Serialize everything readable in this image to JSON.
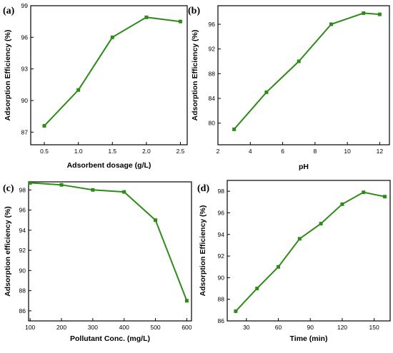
{
  "chart_data": [
    {
      "type": "line",
      "panel_label": "(a)",
      "xlabel": "Adsorbent dosage (g/L)",
      "ylabel": "Adsorption Efficiency (%)",
      "x": [
        0.5,
        1.0,
        1.5,
        2.0,
        2.5
      ],
      "y": [
        87.6,
        91.0,
        96.0,
        97.9,
        97.5
      ],
      "xlim": [
        0.3,
        2.6
      ],
      "ylim": [
        85.8,
        99.0
      ],
      "xticks": [
        0.5,
        1.0,
        1.5,
        2.0,
        2.5
      ],
      "xtick_labels": [
        "0.5",
        "1.0",
        "1.5",
        "2.0",
        "2.5"
      ],
      "yticks": [
        87,
        90,
        93,
        96,
        99
      ],
      "ytick_labels": [
        "87",
        "90",
        "93",
        "96",
        "99"
      ],
      "color": "#2e8b18",
      "grid": false
    },
    {
      "type": "line",
      "panel_label": "(b)",
      "xlabel": "pH",
      "ylabel": "Adsorption Efficiency (%)",
      "x": [
        3,
        5,
        7,
        9,
        11,
        12
      ],
      "y": [
        79.0,
        85.0,
        90.0,
        96.0,
        97.8,
        97.6
      ],
      "xlim": [
        2,
        12.6
      ],
      "ylim": [
        76.5,
        99.0
      ],
      "xticks": [
        2,
        4,
        6,
        8,
        10,
        12
      ],
      "xtick_labels": [
        "2",
        "4",
        "6",
        "8",
        "10",
        "12"
      ],
      "yticks": [
        80,
        84,
        88,
        92,
        96
      ],
      "ytick_labels": [
        "80",
        "84",
        "88",
        "92",
        "96"
      ],
      "color": "#2e8b18",
      "grid": false
    },
    {
      "type": "line",
      "panel_label": "(c)",
      "xlabel": "Pollutant Conc. (mg/L)",
      "ylabel": "Adsorption efficiency (%)",
      "x": [
        100,
        200,
        300,
        400,
        500,
        600
      ],
      "y": [
        98.7,
        98.5,
        98.0,
        97.8,
        95.0,
        87.0
      ],
      "xlim": [
        95,
        615
      ],
      "ylim": [
        85.0,
        98.8
      ],
      "xticks": [
        100,
        200,
        300,
        400,
        500,
        600
      ],
      "xtick_labels": [
        "100",
        "200",
        "300",
        "400",
        "500",
        "600"
      ],
      "yticks": [
        86,
        88,
        90,
        92,
        94,
        96,
        98
      ],
      "ytick_labels": [
        "86",
        "88",
        "90",
        "92",
        "94",
        "96",
        "98"
      ],
      "color": "#2e8b18",
      "grid": false
    },
    {
      "type": "line",
      "panel_label": "(d)",
      "xlabel": "Time (min)",
      "ylabel": "Adsorption Efficiency (%)",
      "x": [
        20,
        40,
        60,
        80,
        100,
        120,
        140,
        160
      ],
      "y": [
        86.9,
        89.0,
        91.0,
        93.6,
        95.0,
        96.8,
        97.9,
        97.5
      ],
      "xlim": [
        12,
        165
      ],
      "ylim": [
        86.0,
        99.0
      ],
      "xticks": [
        30,
        60,
        90,
        120,
        150
      ],
      "xtick_labels": [
        "30",
        "60",
        "90",
        "120",
        "150"
      ],
      "yticks": [
        86,
        88,
        90,
        92,
        94,
        96,
        98
      ],
      "ytick_labels": [
        "86",
        "88",
        "90",
        "92",
        "94",
        "96",
        "98"
      ],
      "color": "#2e8b18",
      "grid": false
    }
  ]
}
